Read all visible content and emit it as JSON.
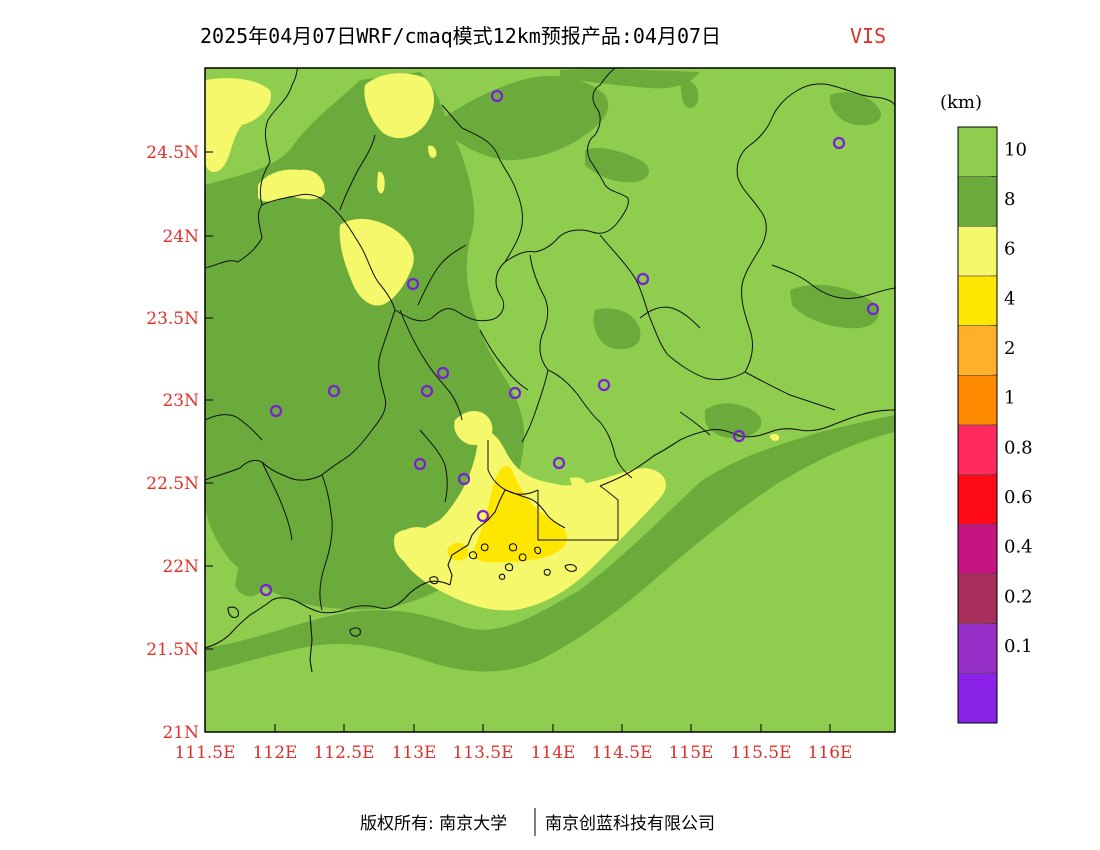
{
  "title": {
    "run_text": "2025年04月07日WRF/cmaq模式12km预报产品:04月07日",
    "variable": "VIS",
    "variable_color": "#e0302a"
  },
  "axes": {
    "lat_labels": [
      "24.5N",
      "24N",
      "23.5N",
      "23N",
      "22.5N",
      "22N",
      "21.5N",
      "21N"
    ],
    "lon_labels": [
      "111.5E",
      "112E",
      "112.5E",
      "113E",
      "113.5E",
      "114E",
      "114.5E",
      "115E",
      "115.5E",
      "116E"
    ],
    "label_color": "#e0302a"
  },
  "colorbar": {
    "unit": "(km)",
    "levels": [
      {
        "color": "#8fcd4f",
        "label": "10"
      },
      {
        "color": "#6aab3b",
        "label": "8"
      },
      {
        "color": "#f5f86a",
        "label": "6"
      },
      {
        "color": "#ffe600",
        "label": "4"
      },
      {
        "color": "#ffb028",
        "label": "2"
      },
      {
        "color": "#ff8a00",
        "label": "1"
      },
      {
        "color": "#ff2a5e",
        "label": "0.8"
      },
      {
        "color": "#ff0a16",
        "label": "0.6"
      },
      {
        "color": "#c81383",
        "label": "0.4"
      },
      {
        "color": "#a82e5c",
        "label": "0.2"
      },
      {
        "color": "#9730c8",
        "label": "0.1"
      },
      {
        "color": "#8a22e8",
        "label": ""
      }
    ]
  },
  "map": {
    "colors": {
      "vis_gt10": "#8fcd4f",
      "vis_8_10": "#6aab3b",
      "vis_6_8": "#f5f86a",
      "vis_4_6": "#ffe600",
      "station": "#7b1fd6"
    }
  },
  "footer": {
    "copyright": "版权所有: 南京大学",
    "company": "南京创蓝科技有限公司"
  }
}
